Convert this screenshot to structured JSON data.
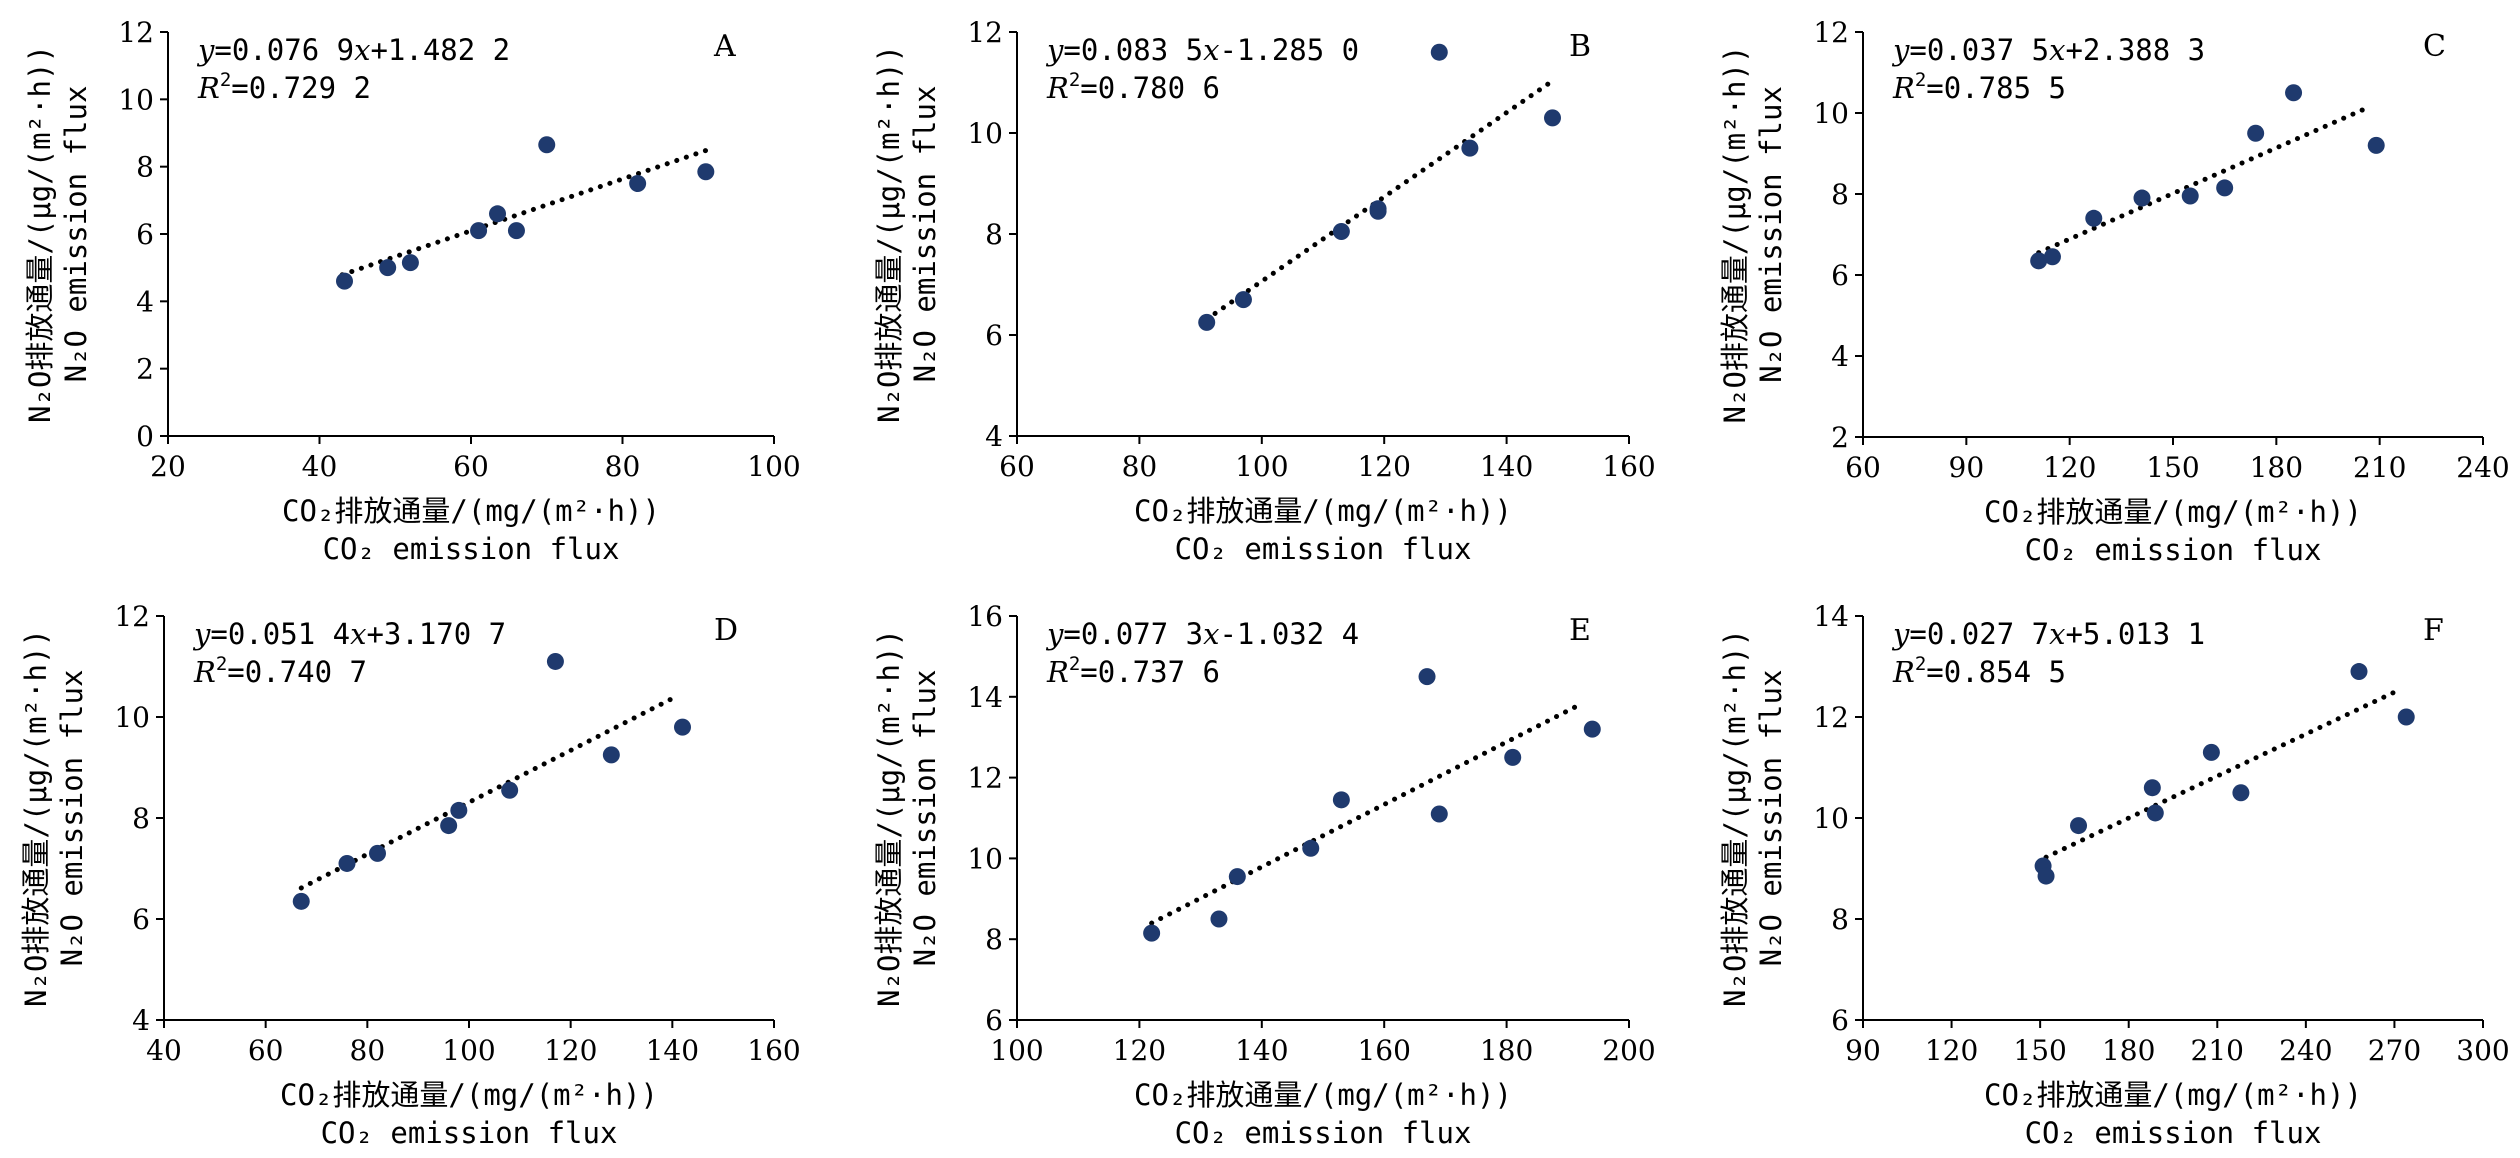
{
  "chart_data": [
    {
      "type": "scatter",
      "panel_label": "A",
      "equation": {
        "y": "y",
        "rest": "=0.076 9",
        "x": "x",
        "tail": "+1.482 2"
      },
      "r2": {
        "r": "R",
        "sup": "2",
        "value": "=0.729 2"
      },
      "xlabel": {
        "zh": "CO₂排放通量/(mg/(m²·h))",
        "en": "CO₂ emission flux"
      },
      "ylabel": {
        "zh": "N₂O排放通量/(μg/(m²·h))",
        "en": "N₂O emission flux"
      },
      "xlim": [
        20,
        100
      ],
      "ylim": [
        0,
        12
      ],
      "xticks": [
        20,
        40,
        60,
        80,
        100
      ],
      "yticks": [
        0,
        2,
        4,
        6,
        8,
        10,
        12
      ],
      "trend": {
        "slope": 0.0769,
        "intercept": 1.4822,
        "x_range": [
          43,
          91
        ]
      },
      "points": [
        [
          43.3,
          4.6
        ],
        [
          49,
          5.0
        ],
        [
          52,
          5.15
        ],
        [
          61,
          6.1
        ],
        [
          63.5,
          6.6
        ],
        [
          66,
          6.1
        ],
        [
          70,
          8.65
        ],
        [
          82,
          7.5
        ],
        [
          91,
          7.85
        ]
      ]
    },
    {
      "type": "scatter",
      "panel_label": "B",
      "equation": {
        "y": "y",
        "rest": "=0.083 5",
        "x": "x",
        "tail": "-1.285 0"
      },
      "r2": {
        "r": "R",
        "sup": "2",
        "value": "=0.780 6"
      },
      "xlabel": {
        "zh": "CO₂排放通量/(mg/(m²·h))",
        "en": "CO₂ emission flux"
      },
      "ylabel": {
        "zh": "N₂O排放通量/(μg/(m²·h))",
        "en": "N₂O emission flux"
      },
      "xlim": [
        60,
        160
      ],
      "ylim": [
        4,
        12
      ],
      "xticks": [
        60,
        80,
        100,
        120,
        140,
        160
      ],
      "yticks": [
        4,
        6,
        8,
        10,
        12
      ],
      "trend": {
        "slope": 0.0835,
        "intercept": -1.285,
        "x_range": [
          91,
          148
        ]
      },
      "points": [
        [
          91,
          6.25
        ],
        [
          97,
          6.7
        ],
        [
          113,
          8.05
        ],
        [
          119,
          8.45
        ],
        [
          119,
          8.5
        ],
        [
          129,
          11.6
        ],
        [
          134,
          9.7
        ],
        [
          147.5,
          10.3
        ]
      ]
    },
    {
      "type": "scatter",
      "panel_label": "C",
      "equation": {
        "y": "y",
        "rest": "=0.037 5",
        "x": "x",
        "tail": "+2.388 3"
      },
      "r2": {
        "r": "R",
        "sup": "2",
        "value": "=0.785 5"
      },
      "xlabel": {
        "zh": "CO₂排放通量/(mg/(m²·h))",
        "en": "CO₂ emission flux"
      },
      "ylabel": {
        "zh": "N₂O排放通量/(μg/(m²·h))",
        "en": "N₂O emission flux"
      },
      "xlim": [
        60,
        240
      ],
      "ylim": [
        2,
        12
      ],
      "xticks": [
        60,
        90,
        120,
        150,
        180,
        210,
        240
      ],
      "yticks": [
        2,
        4,
        6,
        8,
        10,
        12
      ],
      "trend": {
        "slope": 0.0375,
        "intercept": 2.3883,
        "x_range": [
          111,
          206
        ]
      },
      "points": [
        [
          111,
          6.35
        ],
        [
          115,
          6.45
        ],
        [
          127,
          7.4
        ],
        [
          141,
          7.9
        ],
        [
          155,
          7.95
        ],
        [
          165,
          8.15
        ],
        [
          174,
          9.5
        ],
        [
          185,
          10.5
        ],
        [
          209,
          9.2
        ]
      ]
    },
    {
      "type": "scatter",
      "panel_label": "D",
      "equation": {
        "y": "y",
        "rest": "=0.051 4",
        "x": "x",
        "tail": "+3.170 7"
      },
      "r2": {
        "r": "R",
        "sup": "2",
        "value": "=0.740 7"
      },
      "xlabel": {
        "zh": "CO₂排放通量/(mg/(m²·h))",
        "en": "CO₂ emission flux"
      },
      "ylabel": {
        "zh": "N₂O排放通量/(μg/(m²·h))",
        "en": "N₂O emission flux"
      },
      "xlim": [
        40,
        160
      ],
      "ylim": [
        4,
        12
      ],
      "xticks": [
        40,
        60,
        80,
        100,
        120,
        140,
        160
      ],
      "yticks": [
        4,
        6,
        8,
        10,
        12
      ],
      "trend": {
        "slope": 0.0514,
        "intercept": 3.1707,
        "x_range": [
          67,
          141
        ]
      },
      "points": [
        [
          67,
          6.35
        ],
        [
          76,
          7.1
        ],
        [
          82,
          7.3
        ],
        [
          96,
          7.85
        ],
        [
          98,
          8.15
        ],
        [
          108,
          8.55
        ],
        [
          117,
          11.1
        ],
        [
          128,
          9.25
        ],
        [
          142,
          9.8
        ]
      ]
    },
    {
      "type": "scatter",
      "panel_label": "E",
      "equation": {
        "y": "y",
        "rest": "=0.077 3",
        "x": "x",
        "tail": "-1.032 4"
      },
      "r2": {
        "r": "R",
        "sup": "2",
        "value": "=0.737 6"
      },
      "xlabel": {
        "zh": "CO₂排放通量/(mg/(m²·h))",
        "en": "CO₂ emission flux"
      },
      "ylabel": {
        "zh": "N₂O排放通量/(μg/(m²·h))",
        "en": "N₂O emission flux"
      },
      "xlim": [
        100,
        200
      ],
      "ylim": [
        6,
        16
      ],
      "xticks": [
        100,
        120,
        140,
        160,
        180,
        200
      ],
      "yticks": [
        6,
        8,
        10,
        12,
        14,
        16
      ],
      "trend": {
        "slope": 0.0773,
        "intercept": -1.0324,
        "x_range": [
          122,
          192
        ]
      },
      "points": [
        [
          122,
          8.15
        ],
        [
          133,
          8.5
        ],
        [
          136,
          9.55
        ],
        [
          148,
          10.25
        ],
        [
          153,
          11.45
        ],
        [
          167,
          14.5
        ],
        [
          169,
          11.1
        ],
        [
          181,
          12.5
        ],
        [
          194,
          13.2
        ]
      ]
    },
    {
      "type": "scatter",
      "panel_label": "F",
      "equation": {
        "y": "y",
        "rest": "=0.027 7",
        "x": "x",
        "tail": "+5.013 1"
      },
      "r2": {
        "r": "R",
        "sup": "2",
        "value": "=0.854 5"
      },
      "xlabel": {
        "zh": "CO₂排放通量/(mg/(m²·h))",
        "en": "CO₂ emission flux"
      },
      "ylabel": {
        "zh": "N₂O排放通量/(μg/(m²·h))",
        "en": "N₂O emission flux"
      },
      "xlim": [
        90,
        300
      ],
      "ylim": [
        6,
        14
      ],
      "xticks": [
        90,
        120,
        150,
        180,
        210,
        240,
        270,
        300
      ],
      "yticks": [
        6,
        8,
        10,
        12,
        14
      ],
      "trend": {
        "slope": 0.0277,
        "intercept": 5.0131,
        "x_range": [
          152,
          272
        ]
      },
      "points": [
        [
          151,
          9.05
        ],
        [
          152,
          8.85
        ],
        [
          163,
          9.85
        ],
        [
          188,
          10.6
        ],
        [
          189,
          10.1
        ],
        [
          208,
          11.3
        ],
        [
          218,
          10.5
        ],
        [
          258,
          12.9
        ],
        [
          274,
          12.0
        ]
      ]
    }
  ],
  "colors": {
    "marker": "#1f3a6e",
    "axis": "#000000"
  }
}
